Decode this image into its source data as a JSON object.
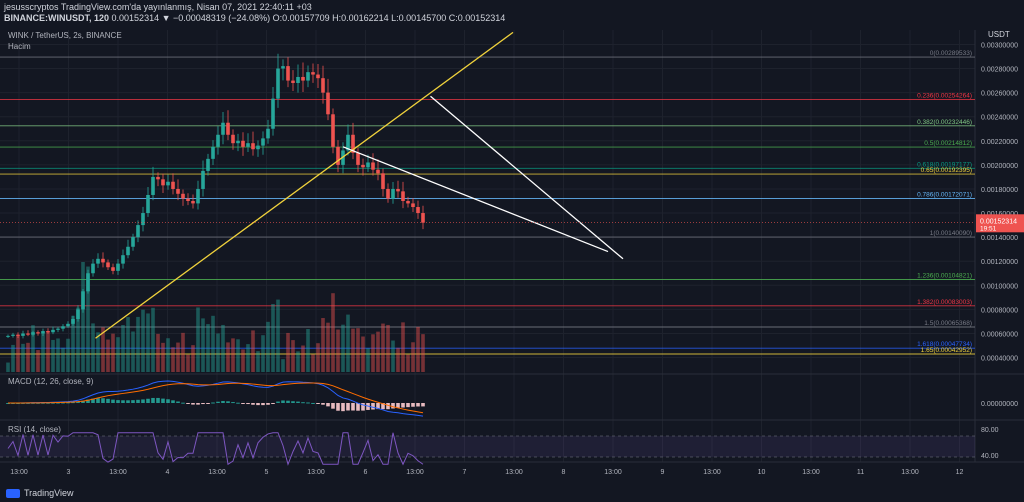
{
  "header": {
    "line1": "jesusscryptos TradingView.com'da yayınlanmış, Nisan 07, 2021 22:40:11 +03",
    "line2_symbol": "BINANCE:WINUSDT, 120",
    "line2_values": "0.00152314 ▼ −0.00048319 (−24.08%) O:0.00157709 H:0.00162214 L:0.00145700 C:0.00152314"
  },
  "pane_titles": {
    "main": "WINK / TetherUS, 2s, BINANCE",
    "volume": "Hacim",
    "macd": "MACD (12, 26, close, 9)",
    "rsi": "RSI (14, close)"
  },
  "price_scale": {
    "currency": "USDT",
    "ticks": [
      "0.00300000",
      "0.00280000",
      "0.00260000",
      "0.00240000",
      "0.00220000",
      "0.00200000",
      "0.00180000",
      "0.00160000",
      "0.00140000",
      "0.00120000",
      "0.00100000",
      "0.00080000",
      "0.00060000",
      "0.00040000"
    ],
    "current_price": "0.00152314",
    "countdown": "19:51",
    "macd_tick": "0.00000000",
    "rsi_ticks": [
      "80.00",
      "40.00"
    ]
  },
  "time_axis": [
    "13:00",
    "3",
    "13:00",
    "4",
    "13:00",
    "5",
    "13:00",
    "6",
    "13:00",
    "7",
    "13:00",
    "8",
    "13:00",
    "9",
    "13:00",
    "10",
    "13:00",
    "11",
    "13:00",
    "12"
  ],
  "colors": {
    "background": "#131722",
    "up": "#26a69a",
    "down": "#ef5350",
    "trendline": "#f0d23c",
    "wedge": "#ffffff",
    "macd_line": "#2962ff",
    "signal_line": "#ff6d00",
    "rsi": "#7e57c2"
  },
  "chart_data": {
    "type": "candlestick",
    "ylim": [
      0.00028,
      0.00312
    ],
    "fib_levels": [
      {
        "label": "0(0.00289533)",
        "value": 0.00289533,
        "color": "#787b86"
      },
      {
        "label": "0.236(0.00254264)",
        "value": 0.00254264,
        "color": "#f23645"
      },
      {
        "label": "0.382(0.00232446)",
        "value": 0.00232446,
        "color": "#81c784"
      },
      {
        "label": "0.5(0.00214812)",
        "value": 0.00214812,
        "color": "#4caf50"
      },
      {
        "label": "0.618(0.00197177)",
        "value": 0.00197177,
        "color": "#089981"
      },
      {
        "label": "0.65(0.00192395)",
        "value": 0.00192395,
        "color": "#f0d23c"
      },
      {
        "label": "0.786(0.00172071)",
        "value": 0.00172071,
        "color": "#64b5f6"
      },
      {
        "label": "1(0.00140090)",
        "value": 0.0014009,
        "color": "#787b86"
      },
      {
        "label": "1.236(0.00104821)",
        "value": 0.00104821,
        "color": "#4caf50"
      },
      {
        "label": "1.382(0.00083003)",
        "value": 0.00083003,
        "color": "#f23645"
      },
      {
        "label": "1.5(0.00065368)",
        "value": 0.00065368,
        "color": "#787b86"
      },
      {
        "label": "1.618(0.00047734)",
        "value": 0.00047734,
        "color": "#2962ff"
      },
      {
        "label": "1.65(0.00042952)",
        "value": 0.00042952,
        "color": "#f0d23c"
      }
    ],
    "trendlines": [
      {
        "type": "support",
        "color": "#f0d23c",
        "points": [
          [
            17.5,
            0.00056
          ],
          [
            101,
            0.0031
          ]
        ]
      },
      {
        "type": "wedge_upper",
        "color": "#ffffff",
        "points": [
          [
            84.5,
            0.00257
          ],
          [
            123,
            0.00122
          ]
        ]
      },
      {
        "type": "wedge_lower",
        "color": "#ffffff",
        "points": [
          [
            67,
            0.00215
          ],
          [
            120,
            0.00128
          ]
        ]
      }
    ]
  }
}
